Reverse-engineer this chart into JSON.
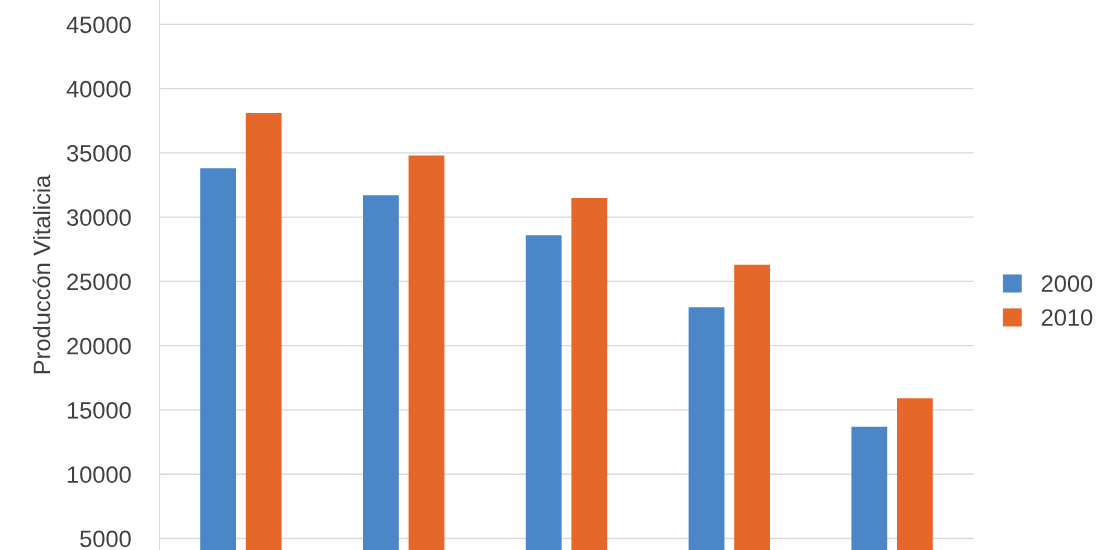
{
  "chart_data": {
    "type": "bar",
    "ylabel": "Produccón Vitalicia",
    "categories": [
      null,
      null,
      null,
      null,
      null
    ],
    "series": [
      {
        "name": "2000",
        "color": "#4a86c8",
        "values": [
          33800,
          31700,
          28600,
          23000,
          13700
        ]
      },
      {
        "name": "2010",
        "color": "#e5672a",
        "values": [
          38100,
          34800,
          31500,
          26300,
          15900
        ]
      }
    ],
    "ylim": [
      4100,
      46900
    ],
    "yticks": [
      5000,
      10000,
      15000,
      20000,
      25000,
      30000,
      35000,
      40000,
      45000
    ],
    "grid": "y",
    "legend": "right"
  }
}
